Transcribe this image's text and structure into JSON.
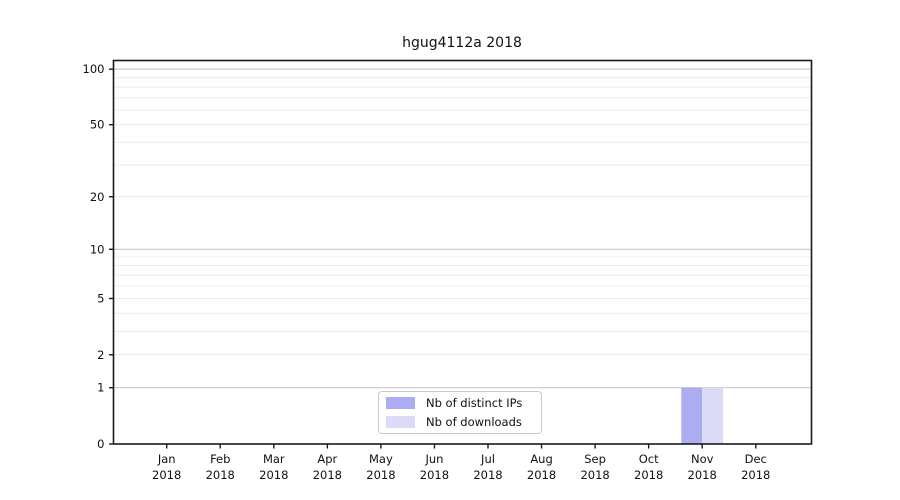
{
  "chart_data": {
    "type": "bar",
    "title": "hgug4112a 2018",
    "categories": [
      "Jan",
      "Feb",
      "Mar",
      "Apr",
      "May",
      "Jun",
      "Jul",
      "Aug",
      "Sep",
      "Oct",
      "Nov",
      "Dec"
    ],
    "category_year": "2018",
    "series": [
      {
        "name": "Nb of distinct IPs",
        "color": "#acacf2",
        "values": [
          0,
          0,
          0,
          0,
          0,
          0,
          0,
          0,
          0,
          0,
          1,
          0
        ]
      },
      {
        "name": "Nb of downloads",
        "color": "#dbdbf8",
        "values": [
          0,
          0,
          0,
          0,
          0,
          0,
          0,
          0,
          0,
          0,
          1,
          0
        ]
      }
    ],
    "xlabel": "",
    "ylabel": "",
    "yscale": "log1p",
    "ylim": [
      0,
      110
    ],
    "yticks": [
      0,
      1,
      2,
      5,
      10,
      20,
      50,
      100
    ],
    "minor_yticks": [
      3,
      4,
      6,
      7,
      8,
      9,
      30,
      40,
      60,
      70,
      80,
      90
    ],
    "grid": true,
    "legend_position": "inside-bottom-center"
  },
  "colors": {
    "background": "#ffffff",
    "axis": "#1a1a1a",
    "text": "#111111",
    "major_grid": "#c8c8c8",
    "minor_grid": "#ececec",
    "legend_border": "#c9c9c9"
  }
}
